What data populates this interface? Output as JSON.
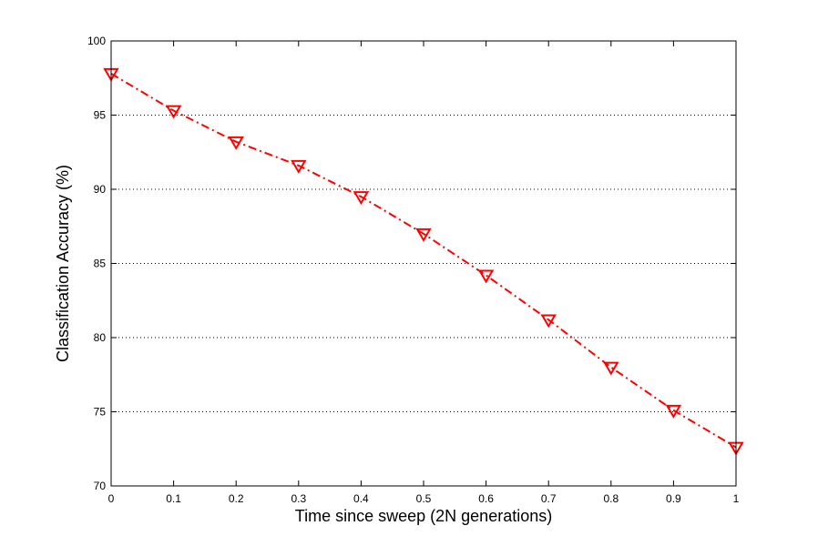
{
  "chart_data": {
    "type": "line",
    "title": "",
    "xlabel": "Time since sweep (2N generations)",
    "ylabel": "Classification Accuracy (%)",
    "xlim": [
      0,
      1
    ],
    "ylim": [
      70,
      100
    ],
    "xticks": [
      0,
      0.1,
      0.2,
      0.3,
      0.4,
      0.5,
      0.6,
      0.7,
      0.8,
      0.9,
      1
    ],
    "yticks": [
      70,
      75,
      80,
      85,
      90,
      95,
      100
    ],
    "xtick_labels": [
      "0",
      "0.1",
      "0.2",
      "0.3",
      "0.4",
      "0.5",
      "0.6",
      "0.7",
      "0.8",
      "0.9",
      "1"
    ],
    "ytick_labels": [
      "70",
      "75",
      "80",
      "85",
      "90",
      "95",
      "100"
    ],
    "grid": "horizontal dotted",
    "legend": "none",
    "series": [
      {
        "x": [
          0,
          0.1,
          0.2,
          0.3,
          0.4,
          0.5,
          0.6,
          0.7,
          0.8,
          0.9,
          1
        ],
        "y": [
          97.8,
          95.3,
          93.2,
          91.6,
          89.5,
          87.0,
          84.2,
          81.2,
          78.0,
          75.1,
          72.6
        ],
        "color": "#ff0000",
        "line_style": "dash-dot",
        "marker": "down-triangle"
      }
    ]
  }
}
